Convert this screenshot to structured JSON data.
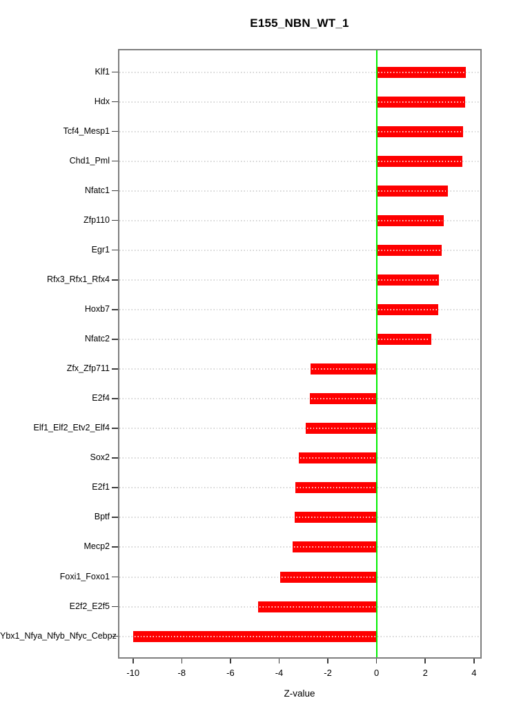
{
  "chart_data": {
    "type": "bar",
    "orientation": "horizontal",
    "title": "E155_NBN_WT_1",
    "xlabel": "Z-value",
    "ylabel": "",
    "categories": [
      "Klf1",
      "Hdx",
      "Tcf4_Mesp1",
      "Chd1_Pml",
      "Nfatc1",
      "Zfp110",
      "Egr1",
      "Rfx3_Rfx1_Rfx4",
      "Hoxb7",
      "Nfatc2",
      "Zfx_Zfp711",
      "E2f4",
      "Elf1_Elf2_Etv2_Elf4",
      "Sox2",
      "E2f1",
      "Bptf",
      "Mecp2",
      "Foxi1_Foxo1",
      "E2f2_E2f5",
      "Ybx1_Nfya_Nfyb_Nfyc_Cebpz"
    ],
    "values": [
      3.67,
      3.63,
      3.55,
      3.53,
      2.92,
      2.77,
      2.66,
      2.56,
      2.53,
      2.26,
      -2.72,
      -2.74,
      -2.91,
      -3.2,
      -3.33,
      -3.35,
      -3.44,
      -3.97,
      -4.87,
      -10.0
    ],
    "xlim": [
      -10.56,
      4.26
    ],
    "x_ticks": [
      -10,
      -8,
      -6,
      -4,
      -2,
      0,
      2,
      4
    ],
    "grid": "dotted-row-lines",
    "legend": "none",
    "colors": {
      "bar": "#fe0000",
      "zero_line": "#00ef00",
      "box_border": "#7d7d7d",
      "grid_dots": "#d2d2d2",
      "text": "#000000"
    }
  }
}
